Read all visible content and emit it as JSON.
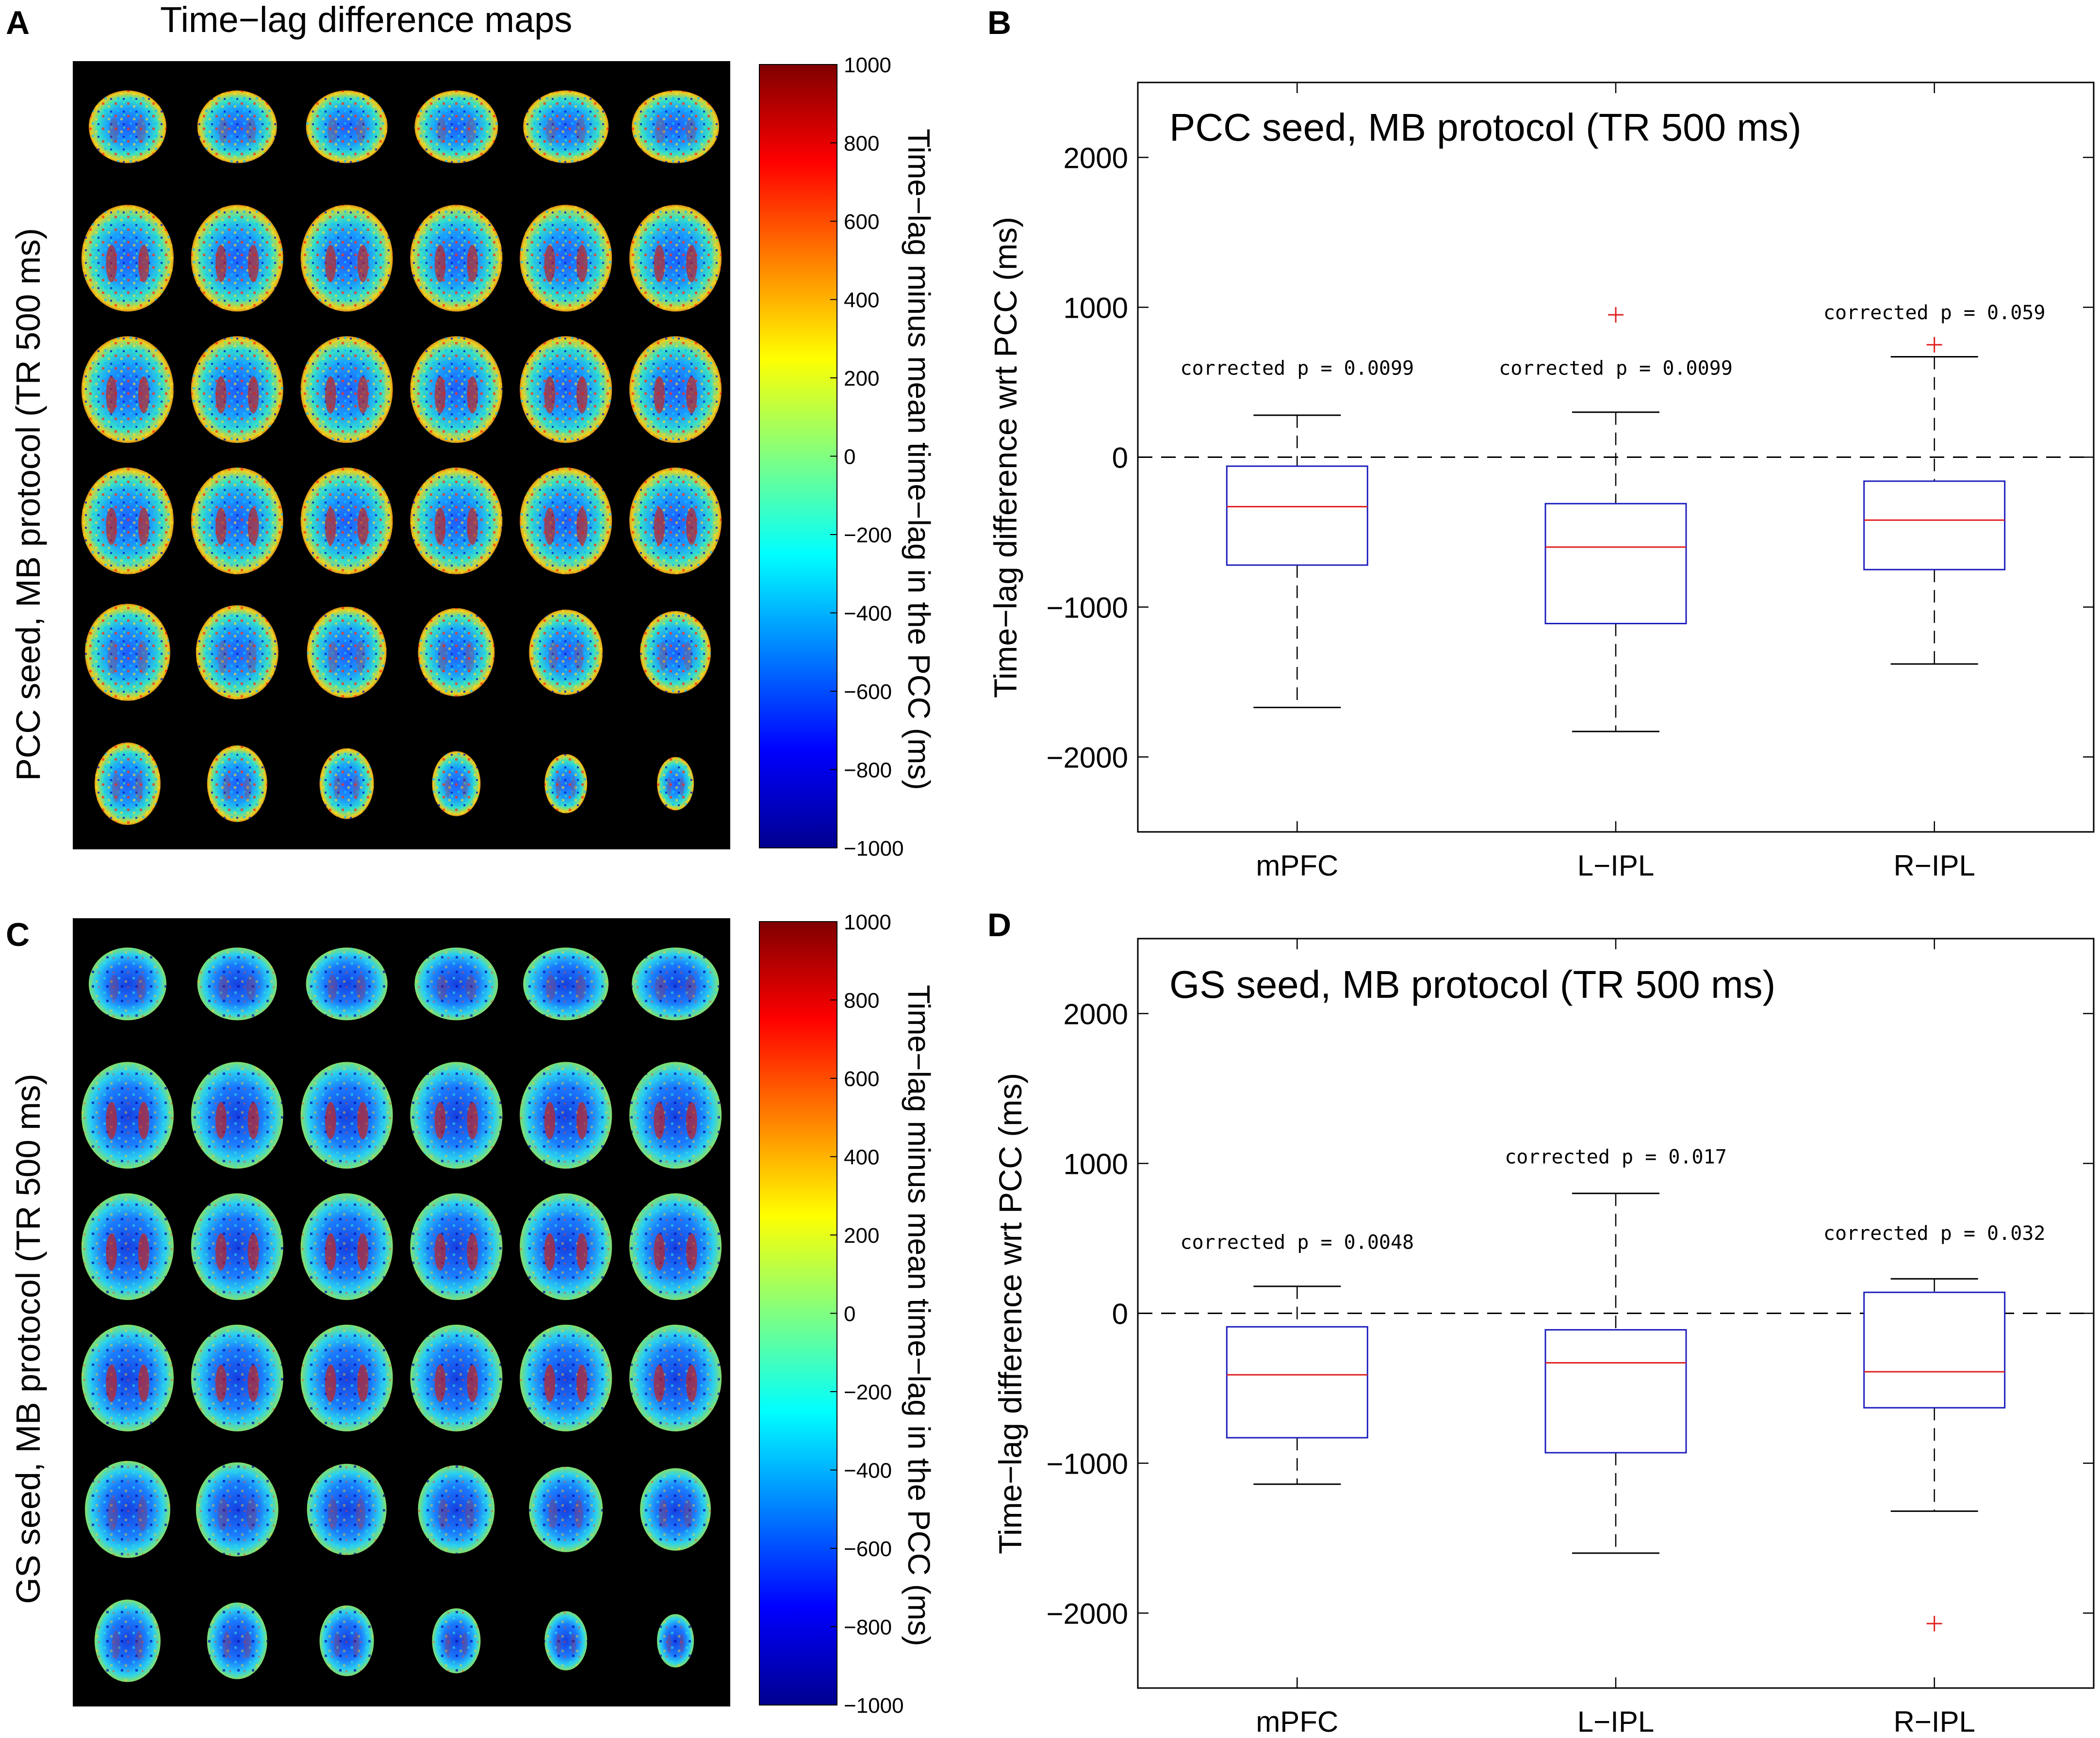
{
  "figure": {
    "panel_a": {
      "letter": "A",
      "title": "Time−lag difference maps",
      "row_label": "PCC seed, MB protocol (TR 500 ms)",
      "grid": {
        "rows": 6,
        "cols": 6
      },
      "colorbar": {
        "ticks": [
          "1000",
          "800",
          "600",
          "400",
          "200",
          "0",
          "−200",
          "−400",
          "−600",
          "−800",
          "−1000"
        ],
        "label": "Time−lag minus mean time−lag in the  PCC (ms)"
      }
    },
    "panel_c": {
      "letter": "C",
      "row_label": "GS seed, MB protocol (TR 500 ms)",
      "grid": {
        "rows": 6,
        "cols": 6
      },
      "colorbar": {
        "ticks": [
          "1000",
          "800",
          "600",
          "400",
          "200",
          "0",
          "−200",
          "−400",
          "−600",
          "−800",
          "−1000"
        ],
        "label": "Time−lag minus mean time−lag in the PCC (ms)"
      }
    },
    "colors": {
      "box": "#1f1fbf",
      "median": "#e02020",
      "outlier": "#e02020",
      "map_background": "#000000",
      "colormap": [
        "#00008f",
        "#0000ff",
        "#0080ff",
        "#00ffff",
        "#80ff80",
        "#ffff00",
        "#ff8000",
        "#ff0000",
        "#800000"
      ]
    }
  },
  "chart_data": [
    {
      "letter": "B",
      "type": "box",
      "title": "PCC seed, MB protocol (TR 500 ms)",
      "ylabel": "Time−lag difference wrt PCC (ms)",
      "xlabel": "",
      "categories": [
        "mPFC",
        "L−IPL",
        "R−IPL"
      ],
      "ylim": [
        -2500,
        2500
      ],
      "yticks": [
        2000,
        1000,
        0,
        -1000,
        -2000
      ],
      "ytick_labels": [
        "2000",
        "1000",
        "0",
        "−1000",
        "−2000"
      ],
      "reference_line": 0,
      "boxes": [
        {
          "category": "mPFC",
          "whisker_low": -1670,
          "q1": -720,
          "median": -330,
          "q3": -60,
          "whisker_high": 280,
          "outliers": []
        },
        {
          "category": "L−IPL",
          "whisker_low": -1830,
          "q1": -1110,
          "median": -600,
          "q3": -310,
          "whisker_high": 300,
          "outliers": [
            950
          ]
        },
        {
          "category": "R−IPL",
          "whisker_low": -1380,
          "q1": -750,
          "median": -420,
          "q3": -160,
          "whisker_high": 670,
          "outliers": [
            750
          ]
        }
      ],
      "annotations": [
        {
          "category": "mPFC",
          "value": 550,
          "text": "corrected p = 0.0099"
        },
        {
          "category": "L−IPL",
          "value": 550,
          "text": "corrected p = 0.0099"
        },
        {
          "category": "R−IPL",
          "value": 920,
          "text": "corrected p = 0.059"
        }
      ]
    },
    {
      "letter": "D",
      "type": "box",
      "title": "GS seed, MB protocol (TR 500 ms)",
      "ylabel": "Time−lag difference wrt PCC (ms)",
      "xlabel": "",
      "categories": [
        "mPFC",
        "L−IPL",
        "R−IPL"
      ],
      "ylim": [
        -2500,
        2500
      ],
      "yticks": [
        2000,
        1000,
        0,
        -1000,
        -2000
      ],
      "ytick_labels": [
        "2000",
        "1000",
        "0",
        "−1000",
        "−2000"
      ],
      "reference_line": 0,
      "boxes": [
        {
          "category": "mPFC",
          "whisker_low": -1140,
          "q1": -830,
          "median": -410,
          "q3": -90,
          "whisker_high": 180,
          "outliers": []
        },
        {
          "category": "L−IPL",
          "whisker_low": -1600,
          "q1": -930,
          "median": -330,
          "q3": -110,
          "whisker_high": 800,
          "outliers": []
        },
        {
          "category": "R−IPL",
          "whisker_low": -1320,
          "q1": -630,
          "median": -390,
          "q3": 140,
          "whisker_high": 230,
          "outliers": [
            -2070
          ]
        }
      ],
      "annotations": [
        {
          "category": "mPFC",
          "value": 430,
          "text": "corrected p = 0.0048"
        },
        {
          "category": "L−IPL",
          "value": 1000,
          "text": "corrected p = 0.017"
        },
        {
          "category": "R−IPL",
          "value": 490,
          "text": "corrected p = 0.032"
        }
      ]
    }
  ]
}
